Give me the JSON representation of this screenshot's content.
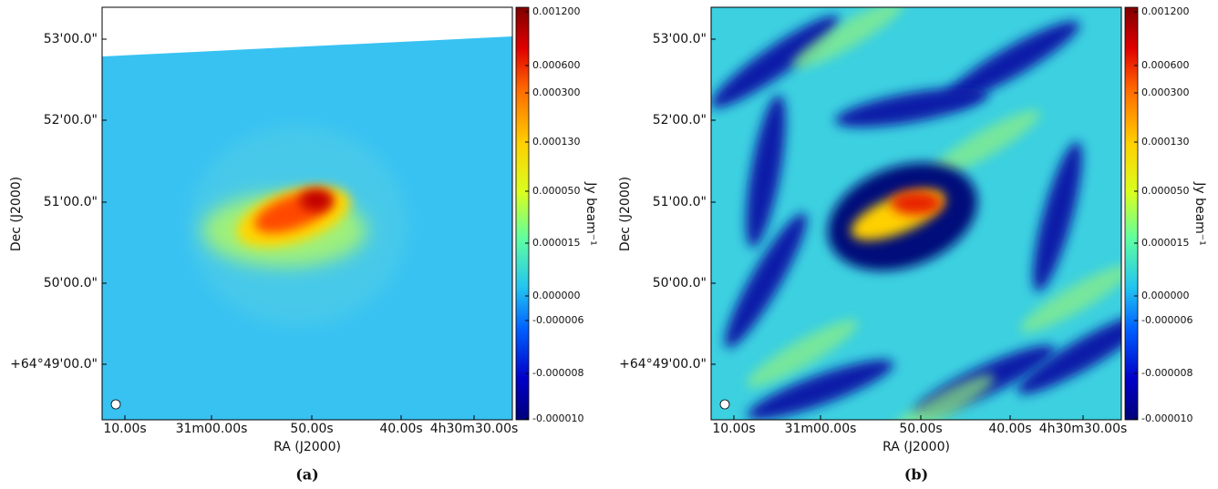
{
  "panels": [
    {
      "dec_ticks": [
        "53'00.0\"",
        "52'00.0\"",
        "51'00.0\"",
        "50'00.0\"",
        "+64°49'00.0\""
      ],
      "ra_ticks": [
        "10.00s",
        "31m00.00s",
        "50.00s",
        "40.00s",
        "4h30m30.00s"
      ],
      "x_label": "RA (J2000)",
      "y_label": "Dec (J2000)",
      "colorbar_ticks": [
        "0.001200",
        "0.000600",
        "0.000300",
        "0.000130",
        "0.000050",
        "0.000015",
        "0.000000",
        "-0.000006",
        "-0.000008",
        "-0.000010"
      ],
      "colorbar_label": "Jy beam⁻¹",
      "caption": "(a)"
    },
    {
      "dec_ticks": [
        "53'00.0\"",
        "52'00.0\"",
        "51'00.0\"",
        "50'00.0\"",
        "+64°49'00.0\""
      ],
      "ra_ticks": [
        "10.00s",
        "31m00.00s",
        "50.00s",
        "40.00s",
        "4h30m30.00s"
      ],
      "x_label": "RA (J2000)",
      "y_label": "Dec (J2000)",
      "colorbar_ticks": [
        "0.001200",
        "0.000600",
        "0.000300",
        "0.000130",
        "0.000050",
        "0.000015",
        "0.000000",
        "-0.000006",
        "-0.000008",
        "-0.000010"
      ],
      "colorbar_label": "Jy beam⁻¹",
      "caption": "(b)"
    }
  ]
}
